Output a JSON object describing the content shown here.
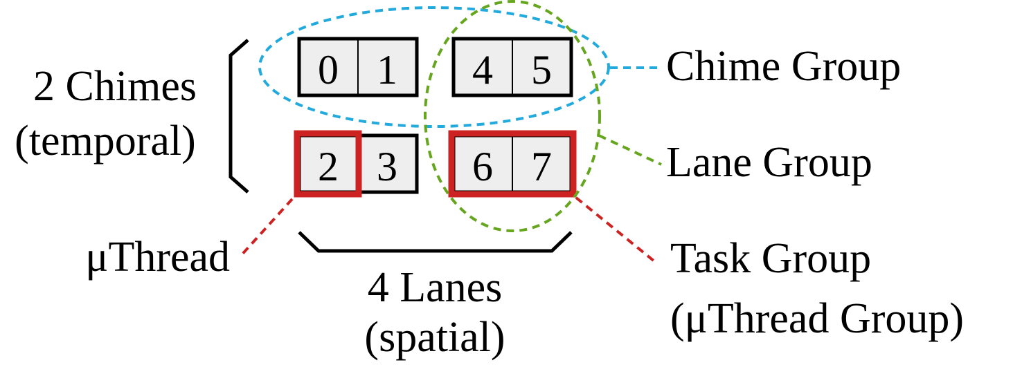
{
  "left_label": {
    "line1": "2 Chimes",
    "line2": "(temporal)"
  },
  "bottom_label": {
    "line1": "4 Lanes",
    "line2": "(spatial)"
  },
  "legend": {
    "chime_group": "Chime Group",
    "lane_group": "Lane Group",
    "task_group_line1": "Task Group",
    "task_group_line2": "(μThread Group)",
    "uthread": "μThread"
  },
  "cells": [
    "0",
    "1",
    "4",
    "5",
    "2",
    "3",
    "6",
    "7"
  ],
  "colors": {
    "chime_group": "#22aadd",
    "lane_group": "#66a61e",
    "task_group": "#cc2222",
    "cell_fill": "#eeeeee",
    "outline": "#000000"
  }
}
